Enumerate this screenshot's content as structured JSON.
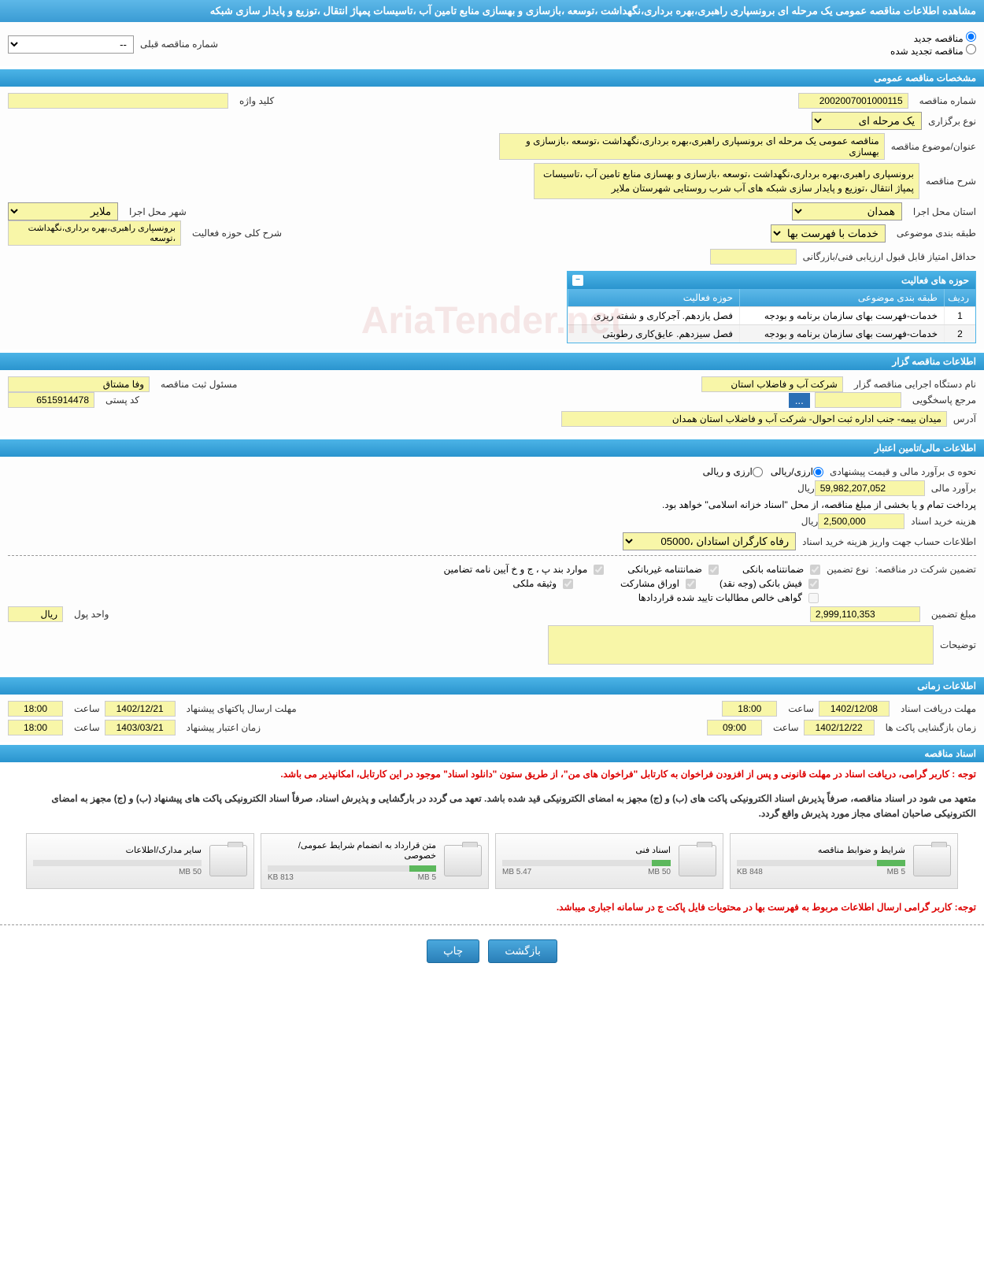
{
  "header": {
    "title": "مشاهده اطلاعات مناقصه عمومی یک مرحله ای برونسپاری راهبری،بهره برداری،نگهداشت ،توسعه ،بازسازی و بهسازی منابع تامین آب ،تاسیسات پمپاژ انتقال ،توزیع و پایدار سازی شبکه"
  },
  "status": {
    "new_label": "مناقصه جدید",
    "renewed_label": "مناقصه تجدید شده",
    "prev_number_label": "شماره مناقصه قبلی",
    "prev_number_value": "--"
  },
  "sections": {
    "general": "مشخصات مناقصه عمومی",
    "organizer": "اطلاعات مناقصه گزار",
    "financial": "اطلاعات مالی/تامین اعتبار",
    "timing": "اطلاعات زمانی",
    "docs": "اسناد مناقصه"
  },
  "general": {
    "number_label": "شماره مناقصه",
    "number_value": "2002007001000115",
    "keyword_label": "کلید واژه",
    "type_label": "نوع برگزاری",
    "type_value": "یک مرحله ای",
    "subject_label": "عنوان/موضوع مناقصه",
    "subject_value": "مناقصه عمومی یک مرحله ای برونسپاری راهبری،بهره برداری،نگهداشت ،توسعه ،بازسازی و بهسازی",
    "desc_label": "شرح مناقصه",
    "desc_value": "برونسپاری راهبری،بهره برداری،نگهداشت ،توسعه ،بازسازی و بهسازی منابع تامین آب ،تاسیسات پمپاژ انتقال ،توزیع و پایدار سازی شبکه های آب شرب روستایی شهرستان ملایر",
    "province_label": "استان محل اجرا",
    "province_value": "همدان",
    "city_label": "شهر محل اجرا",
    "city_value": "ملایر",
    "category_label": "طبقه بندی موضوعی",
    "category_value": "خدمات با فهرست بها",
    "activity_desc_label": "شرح کلی حوزه فعالیت",
    "activity_desc_value": "برونسپاری راهبری،بهره برداری،نگهداشت ،توسعه",
    "min_score_label": "حداقل امتیاز قابل قبول ارزیابی فنی/بازرگانی"
  },
  "activities_table": {
    "title": "حوزه های فعالیت",
    "col_idx": "ردیف",
    "col_cat": "طبقه بندی موضوعی",
    "col_act": "حوزه فعالیت",
    "rows": [
      {
        "idx": "1",
        "cat": "خدمات-فهرست بهای سازمان برنامه و بودجه",
        "act": "فصل یازدهم. آجرکاری و شفته ریزی"
      },
      {
        "idx": "2",
        "cat": "خدمات-فهرست بهای سازمان برنامه و بودجه",
        "act": "فصل سیزدهم. عایق‌کاری رطوبتی"
      }
    ]
  },
  "organizer": {
    "org_label": "نام دستگاه اجرایی مناقصه گزار",
    "org_value": "شرکت آب و فاضلاب استان",
    "reg_label": "مسئول ثبت مناقصه",
    "reg_value": "وفا مشتاق",
    "resp_label": "مرجع پاسخگویی",
    "postal_label": "کد پستی",
    "postal_value": "6515914478",
    "address_label": "آدرس",
    "address_value": "میدان بیمه- جنب اداره ثبت احوال- شرکت آب و فاضلاب استان همدان",
    "ellipsis": "..."
  },
  "financial": {
    "method_label": "نحوه ی برآورد مالی و قیمت پیشنهادی",
    "method_rial": "ارزی/ریالی",
    "method_both": "ارزی و ریالی",
    "estimate_label": "برآورد مالی",
    "estimate_value": "59,982,207,052",
    "rial_unit": "ریال",
    "treasury_note": "پرداخت تمام و یا بخشی از مبلغ مناقصه، از محل \"اسناد خزانه اسلامی\" خواهد بود.",
    "doc_cost_label": "هزینه خرید اسناد",
    "doc_cost_value": "2,500,000",
    "account_label": "اطلاعات حساب جهت واریز هزینه خرید اسناد",
    "account_value": "رفاه کارگران استادان ،05000",
    "guarantee_label": "تضمین شرکت در مناقصه:",
    "guarantee_type_label": "نوع تضمین",
    "guarantees": {
      "bank": "ضمانتنامه بانکی",
      "nonbank": "ضمانتنامه غیربانکی",
      "bylaw": "موارد بند پ ، ج و خ آیین نامه تضامین",
      "cash": "فیش بانکی (وجه نقد)",
      "bonds": "اوراق مشارکت",
      "property": "وثیقه ملکی",
      "receivables": "گواهی خالص مطالبات تایید شده قراردادها"
    },
    "amount_label": "مبلغ تضمین",
    "amount_value": "2,999,110,353",
    "currency_label": "واحد پول",
    "currency_value": "ریال",
    "notes_label": "توضیحات"
  },
  "timing": {
    "receive_label": "مهلت دریافت اسناد",
    "receive_date": "1402/12/08",
    "time_label": "ساعت",
    "receive_time": "18:00",
    "send_label": "مهلت ارسال پاکتهای پیشنهاد",
    "send_date": "1402/12/21",
    "send_time": "18:00",
    "open_label": "زمان بازگشایی پاکت ها",
    "open_date": "1402/12/22",
    "open_time": "09:00",
    "validity_label": "زمان اعتبار پیشنهاد",
    "validity_date": "1403/03/21",
    "validity_time": "18:00"
  },
  "docs": {
    "notice1_prefix": "توجه : ",
    "notice1": "کاربر گرامی، دریافت اسناد در مهلت قانونی و پس از افزودن فراخوان به کارتابل \"فراخوان های من\"، از طریق ستون \"دانلود اسناد\" موجود در این کارتابل، امکانپذیر می باشد.",
    "notice2": "متعهد می شود در اسناد مناقصه، صرفاً پذیرش اسناد الکترونیکی پاکت های (ب) و (ج) مجهز به امضای الکترونیکی قید شده باشد. تعهد می گردد در بارگشایی و پذیرش اسناد، صرفاً اسناد الکترونیکی پاکت های پیشنهاد (ب) و (ج) مجهز به امضای الکترونیکی صاحبان امضای مجاز مورد پذیرش واقع گردد.",
    "cards": [
      {
        "title": "شرایط و ضوابط مناقصه",
        "used": "848 KB",
        "total": "5 MB",
        "pct": 17
      },
      {
        "title": "اسناد فنی",
        "used": "5.47 MB",
        "total": "50 MB",
        "pct": 11
      },
      {
        "title": "متن قرارداد به انضمام شرایط عمومی/خصوصی",
        "used": "813 KB",
        "total": "5 MB",
        "pct": 16
      },
      {
        "title": "سایر مدارک/اطلاعات",
        "used": "",
        "total": "50 MB",
        "pct": 0
      }
    ],
    "bottom_notice_prefix": "توجه: ",
    "bottom_notice": "کاربر گرامی ارسال اطلاعات مربوط به فهرست بها در محتویات فایل پاکت ج در سامانه اجباری میباشد."
  },
  "footer": {
    "back": "بازگشت",
    "print": "چاپ"
  },
  "watermark": "AriaTender.net",
  "colors": {
    "header_bg": "#3a9bd4",
    "section_bg": "#2a94ce",
    "field_bg": "#f8f6a8",
    "red": "#d00000"
  }
}
